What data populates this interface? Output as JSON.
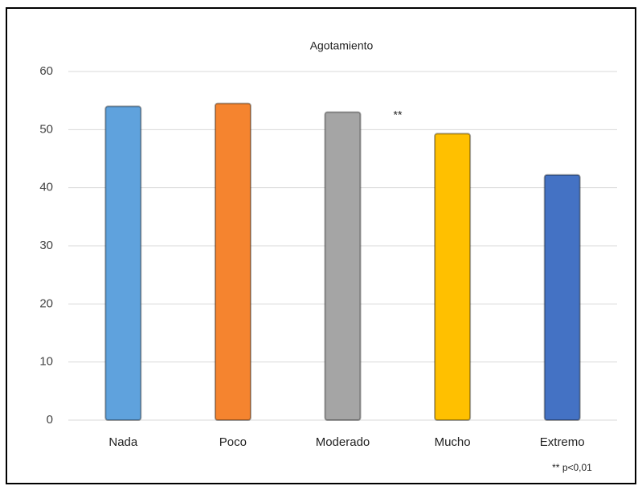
{
  "chart_data": {
    "type": "bar",
    "title": "Agotamiento",
    "categories": [
      "Nada",
      "Poco",
      "Moderado",
      "Mucho",
      "Extremo"
    ],
    "values": [
      54,
      54.5,
      53,
      49.3,
      42.2
    ],
    "colors": [
      "#5fa2dd",
      "#f5842f",
      "#a5a5a5",
      "#ffc000",
      "#4472c4"
    ],
    "ylim": [
      0,
      60
    ],
    "yticks": [
      0,
      10,
      20,
      30,
      40,
      50,
      60
    ],
    "grid": true,
    "annotations": [
      "**",
      "** p<0,01"
    ]
  }
}
